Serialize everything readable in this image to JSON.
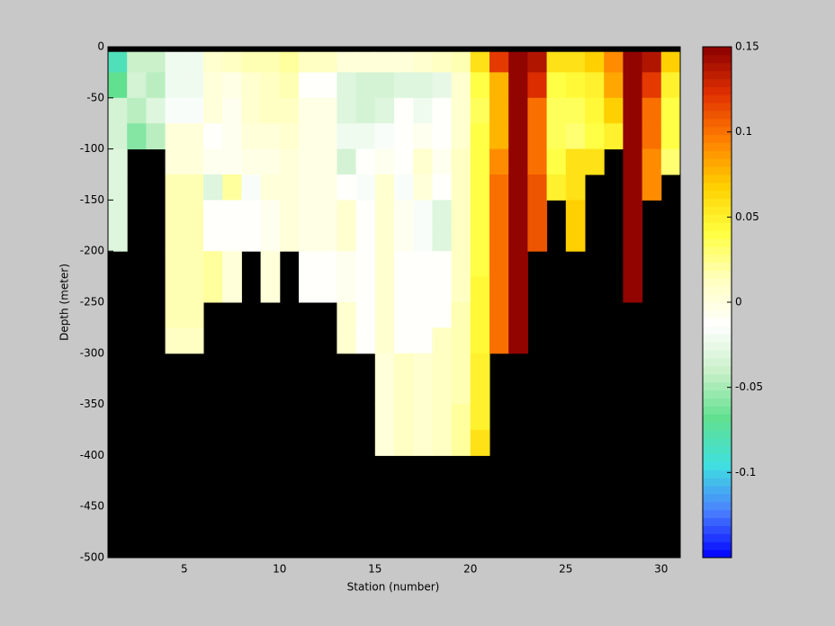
{
  "chart_data": {
    "type": "heatmap",
    "xlabel": "Station (number)",
    "ylabel": "Depth (meter)",
    "x": [
      1,
      2,
      3,
      4,
      5,
      6,
      7,
      8,
      9,
      10,
      11,
      12,
      13,
      14,
      15,
      16,
      17,
      18,
      19,
      20,
      21,
      22,
      23,
      24,
      25,
      26,
      27,
      28,
      29,
      30
    ],
    "y_edges": [
      -5,
      -25,
      -50,
      -75,
      -100,
      -125,
      -150,
      -175,
      -200,
      -225,
      -250,
      -275,
      -300,
      -325,
      -350,
      -375,
      -400
    ],
    "z": [
      [
        -0.08,
        -0.07,
        -0.035,
        -0.035,
        -0.03,
        -0.03,
        -0.03,
        -0.03,
        null,
        null,
        null,
        null,
        null,
        null,
        null,
        null
      ],
      [
        -0.04,
        -0.035,
        -0.045,
        -0.06,
        null,
        null,
        null,
        null,
        null,
        null,
        null,
        null,
        null,
        null,
        null,
        null
      ],
      [
        -0.04,
        -0.045,
        -0.03,
        -0.045,
        null,
        null,
        null,
        null,
        null,
        null,
        null,
        null,
        null,
        null,
        null,
        null
      ],
      [
        -0.02,
        -0.02,
        -0.015,
        0.002,
        0.002,
        0.015,
        0.015,
        0.015,
        0.015,
        0.015,
        0.015,
        0.01,
        null,
        null,
        null,
        null
      ],
      [
        -0.02,
        -0.02,
        -0.015,
        0.002,
        0.002,
        0.015,
        0.015,
        0.015,
        0.015,
        0.015,
        0.015,
        0.01,
        null,
        null,
        null,
        null
      ],
      [
        0.005,
        0,
        0.002,
        -0.01,
        -0.005,
        -0.03,
        -0.012,
        -0.012,
        0.02,
        0.02,
        null,
        null,
        null,
        null,
        null,
        null
      ],
      [
        0.01,
        -0.002,
        -0.005,
        -0.005,
        -0.005,
        0.02,
        -0.01,
        -0.01,
        0.002,
        0.002,
        null,
        null,
        null,
        null,
        null,
        null
      ],
      [
        0.015,
        0.005,
        0.005,
        0,
        -0.002,
        -0.015,
        -0.01,
        -0.01,
        null,
        null,
        null,
        null,
        null,
        null,
        null,
        null
      ],
      [
        0.015,
        0.01,
        0.01,
        0.002,
        -0.002,
        0,
        -0.005,
        -0.005,
        0.002,
        0.002,
        null,
        null,
        null,
        null,
        null,
        null
      ],
      [
        0.02,
        0.015,
        0.01,
        0.005,
        0.002,
        0.002,
        0.002,
        0.002,
        null,
        null,
        null,
        null,
        null,
        null,
        null,
        null
      ],
      [
        0.01,
        -0.01,
        -0.002,
        -0.002,
        -0.002,
        -0.002,
        -0.002,
        -0.002,
        -0.01,
        -0.01,
        null,
        null,
        null,
        null,
        null,
        null
      ],
      [
        0.01,
        -0.01,
        -0.002,
        -0.002,
        -0.002,
        -0.002,
        -0.002,
        -0.002,
        -0.01,
        -0.01,
        null,
        null,
        null,
        null,
        null,
        null
      ],
      [
        0.002,
        -0.03,
        -0.03,
        -0.02,
        -0.035,
        -0.01,
        0.005,
        0.005,
        -0.005,
        -0.005,
        0.005,
        0.005,
        null,
        null,
        null,
        null
      ],
      [
        0.002,
        -0.035,
        -0.035,
        -0.02,
        -0.01,
        -0.015,
        -0.01,
        -0.01,
        -0.01,
        -0.01,
        -0.01,
        -0.01,
        null,
        null,
        null,
        null
      ],
      [
        0.002,
        -0.035,
        -0.03,
        -0.015,
        -0.005,
        0.005,
        0.005,
        0.005,
        0.005,
        0.005,
        0.005,
        0.005,
        0.002,
        0.002,
        0.002,
        0.002
      ],
      [
        0.002,
        -0.03,
        -0.01,
        -0.01,
        -0.01,
        -0.015,
        -0.005,
        -0.005,
        -0.01,
        -0.01,
        -0.01,
        -0.01,
        0.01,
        0.01,
        0.01,
        0.01
      ],
      [
        0.005,
        -0.03,
        -0.02,
        -0.005,
        0.005,
        0,
        -0.015,
        -0.015,
        -0.01,
        -0.01,
        -0.01,
        -0.01,
        0.005,
        0.005,
        0.005,
        0.005
      ],
      [
        0.01,
        -0.025,
        -0.01,
        -0.01,
        -0.005,
        -0.01,
        -0.03,
        -0.03,
        -0.01,
        -0.01,
        -0.01,
        0.01,
        0.01,
        0.01,
        0.01,
        0.01
      ],
      [
        0.015,
        0.005,
        0.005,
        0.005,
        0.01,
        0.01,
        0.01,
        0.01,
        0.01,
        0.01,
        0.015,
        0.015,
        0.015,
        0.015,
        0.02,
        0.02
      ],
      [
        0.06,
        0.04,
        0.035,
        0.04,
        0.04,
        0.04,
        0.04,
        0.04,
        0.04,
        0.045,
        0.045,
        0.045,
        0.05,
        0.05,
        0.05,
        0.06
      ],
      [
        0.12,
        0.075,
        0.075,
        0.075,
        0.09,
        0.1,
        0.1,
        0.1,
        0.1,
        0.1,
        0.1,
        0.1,
        null,
        null,
        null,
        null
      ],
      [
        0.15,
        0.15,
        0.15,
        0.15,
        0.15,
        0.15,
        0.15,
        0.15,
        0.15,
        0.15,
        0.15,
        0.15,
        null,
        null,
        null,
        null
      ],
      [
        0.14,
        0.125,
        0.1,
        0.1,
        0.1,
        0.11,
        0.11,
        0.11,
        null,
        null,
        null,
        null,
        null,
        null,
        null,
        null
      ],
      [
        0.06,
        0.04,
        0.035,
        0.035,
        0.04,
        0.05,
        null,
        null,
        null,
        null,
        null,
        null,
        null,
        null,
        null,
        null
      ],
      [
        0.06,
        0.045,
        0.035,
        0.03,
        0.06,
        0.06,
        0.07,
        0.07,
        null,
        null,
        null,
        null,
        null,
        null,
        null,
        null
      ],
      [
        0.07,
        0.05,
        0.045,
        0.04,
        0.06,
        null,
        null,
        null,
        null,
        null,
        null,
        null,
        null,
        null,
        null,
        null
      ],
      [
        0.09,
        0.08,
        0.07,
        0.05,
        null,
        null,
        null,
        null,
        null,
        null,
        null,
        null,
        null,
        null,
        null,
        null
      ],
      [
        0.15,
        0.15,
        0.15,
        0.15,
        0.15,
        0.15,
        0.15,
        0.15,
        0.15,
        0.15,
        null,
        null,
        null,
        null,
        null,
        null
      ],
      [
        0.14,
        0.12,
        0.1,
        0.1,
        0.09,
        0.09,
        null,
        null,
        null,
        null,
        null,
        null,
        null,
        null,
        null,
        null
      ],
      [
        0.07,
        0.05,
        0.04,
        0.04,
        0.03,
        null,
        null,
        null,
        null,
        null,
        null,
        null,
        null,
        null,
        null,
        null
      ]
    ],
    "xlim": [
      1,
      31
    ],
    "xticks": [
      5,
      10,
      15,
      20,
      25,
      30
    ],
    "ylim": [
      -500,
      0
    ],
    "yticks": [
      0,
      -50,
      -100,
      -150,
      -200,
      -250,
      -300,
      -350,
      -400,
      -450,
      -500
    ],
    "clim": [
      -0.15,
      0.15
    ],
    "cticks": [
      -0.1,
      -0.05,
      0,
      0.05,
      0.1,
      0.15
    ],
    "colormap": [
      "#0000ff",
      "#4a80ff",
      "#40e0e0",
      "#60e090",
      "#c8f0c8",
      "#ffffff",
      "#ffffc0",
      "#ffff40",
      "#ffd000",
      "#ff8000",
      "#e03000",
      "#8b0000"
    ],
    "missing_color": "#000000"
  }
}
